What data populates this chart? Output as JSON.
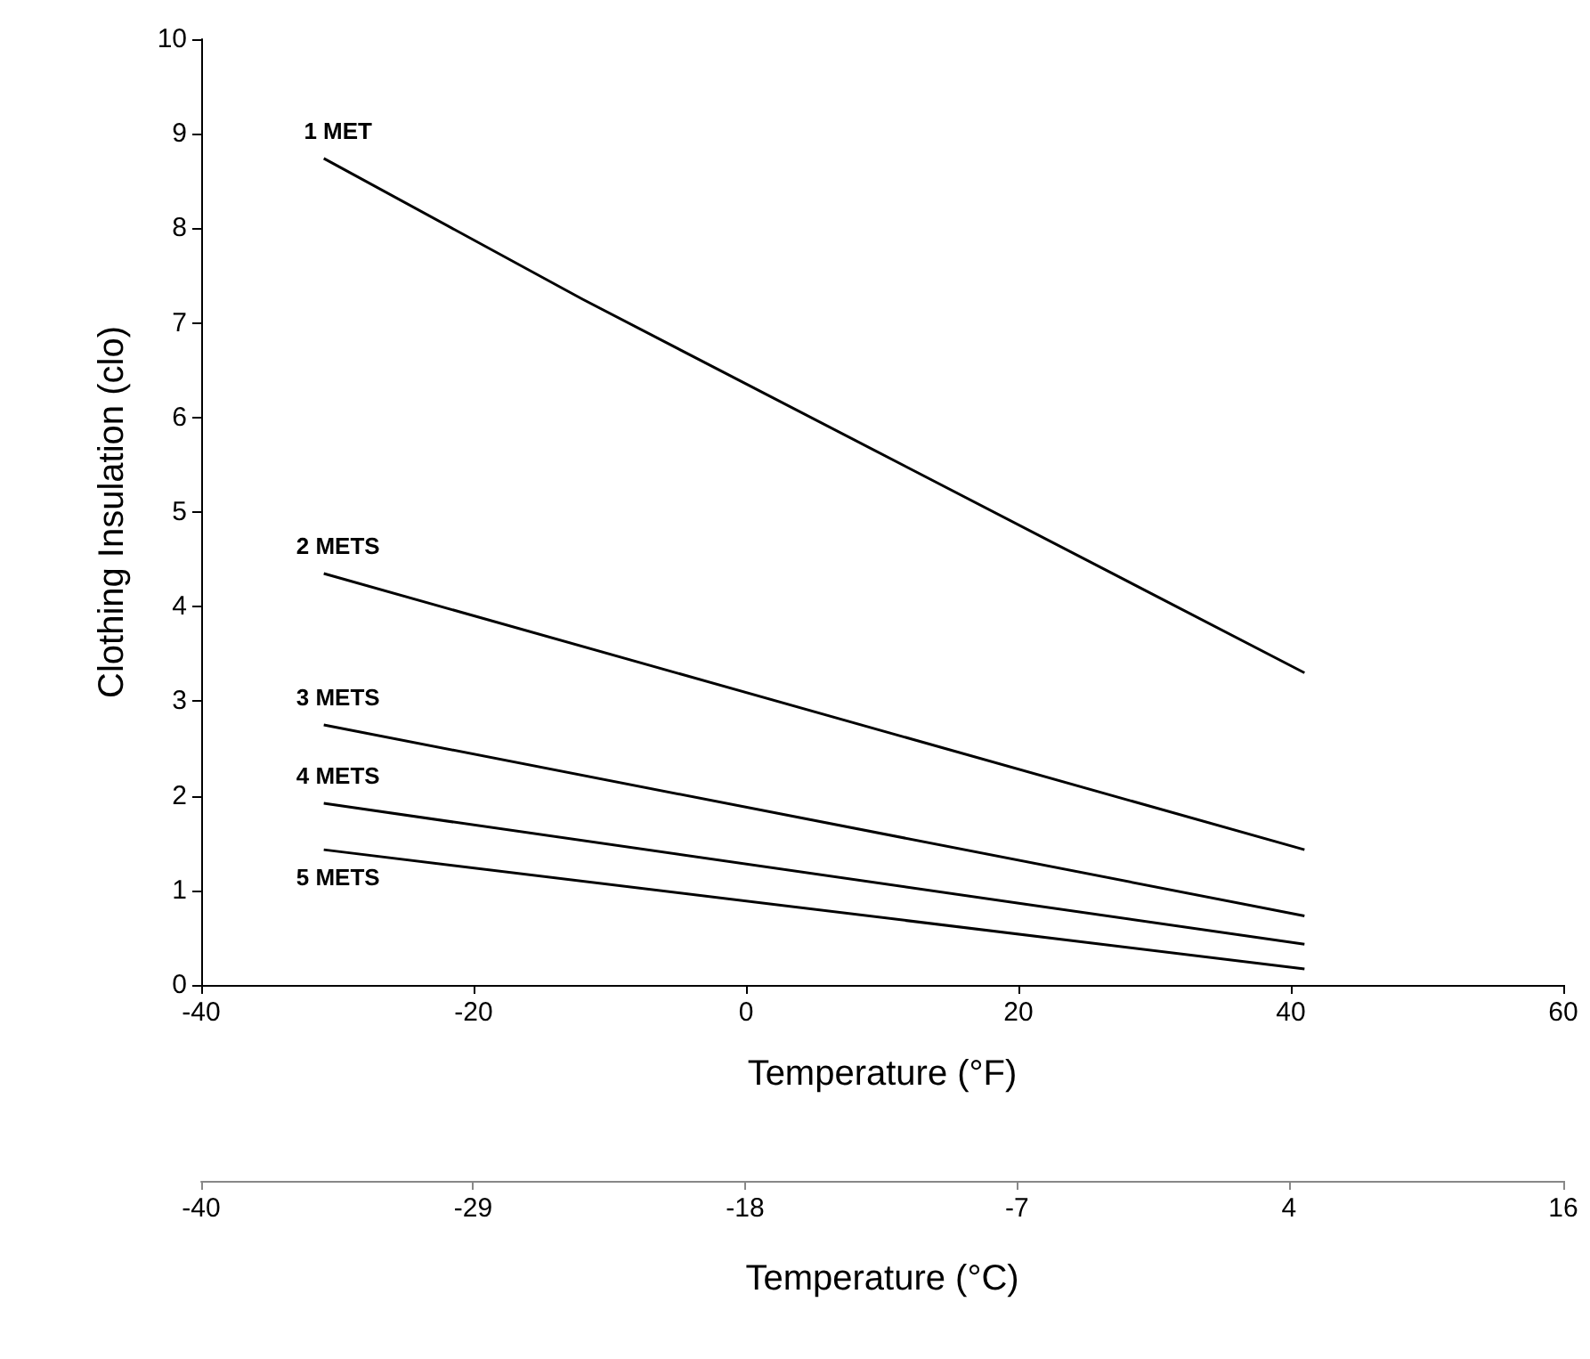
{
  "chart_data": {
    "type": "line",
    "xlabel": "Temperature (°F)",
    "ylabel": "Clothing Insulation (clo)",
    "x2label": "Temperature (°C)",
    "xlim": [
      -40,
      60
    ],
    "xticks": [
      -40,
      -20,
      0,
      20,
      40,
      60
    ],
    "ylim": [
      0,
      10
    ],
    "yticks": [
      0,
      1,
      2,
      3,
      4,
      5,
      6,
      7,
      8,
      9,
      10
    ],
    "x2lim": [
      -40,
      15.6
    ],
    "x2ticks": [
      -40,
      {
        "value": -28.9,
        "label": "-29"
      },
      {
        "value": -17.8,
        "label": "-18"
      },
      {
        "value": -6.7,
        "label": "-7"
      },
      {
        "value": 4.4,
        "label": "4"
      },
      {
        "value": 15.6,
        "label": "16"
      }
    ],
    "grid": false,
    "legend": false,
    "marker": "none",
    "line_style": "solid",
    "series": [
      {
        "name": "1 MET",
        "color": "#000000",
        "x": [
          -31,
          -12,
          41
        ],
        "values": [
          8.74,
          7.25,
          3.3
        ]
      },
      {
        "name": "2 METS",
        "color": "#000000",
        "x": [
          -31,
          41
        ],
        "values": [
          4.35,
          1.43
        ]
      },
      {
        "name": "3 METS",
        "color": "#000000",
        "x": [
          -31,
          41
        ],
        "values": [
          2.75,
          0.73
        ]
      },
      {
        "name": "4 METS",
        "color": "#000000",
        "x": [
          -31,
          41
        ],
        "values": [
          1.92,
          0.43
        ]
      },
      {
        "name": "5 METS",
        "color": "#000000",
        "x": [
          -31,
          41
        ],
        "values": [
          1.43,
          0.17
        ]
      }
    ]
  }
}
